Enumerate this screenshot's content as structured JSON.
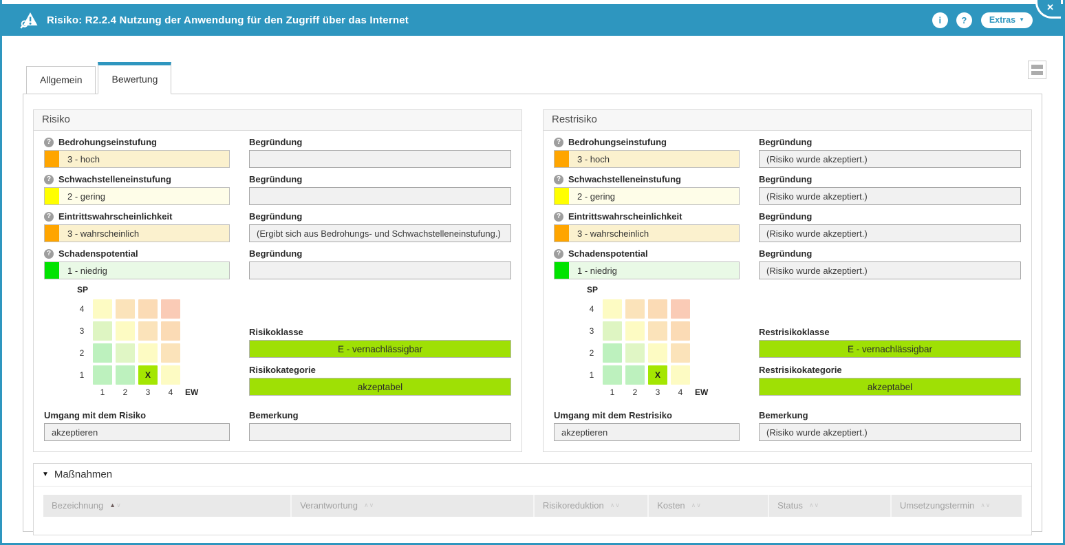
{
  "titlebar": {
    "title": "Risiko: R2.2.4 Nutzung der Anwendung für den Zugriff über das Internet",
    "info_button": "i",
    "help_button": "?",
    "extras_button": "Extras",
    "close_button": "✕"
  },
  "colors": {
    "header_blue": "#2E96BF",
    "class_green": "#9FE005"
  },
  "tabs": {
    "allgemein": "Allgemein",
    "bewertung": "Bewertung"
  },
  "field_styles": [
    {
      "stripe": "#FFA500",
      "bg": "#FBF1CE"
    },
    {
      "stripe": "#FFFF00",
      "bg": "#FEFDE8"
    },
    {
      "stripe": "#FFA500",
      "bg": "#FBF1CE"
    },
    {
      "stripe": "#00E300",
      "bg": "#E9F9E6"
    }
  ],
  "risiko": {
    "title": "Risiko",
    "fields": [
      {
        "label": "Bedrohungseinstufung",
        "value": "3 - hoch",
        "reason_label": "Begründung",
        "reason": ""
      },
      {
        "label": "Schwachstelleneinstufung",
        "value": "2 - gering",
        "reason_label": "Begründung",
        "reason": ""
      },
      {
        "label": "Eintrittswahrscheinlichkeit",
        "value": "3 - wahrscheinlich",
        "reason_label": "Begründung",
        "reason": "(Ergibt sich aus Bedrohungs- und Schwachstelleneinstufung.)"
      },
      {
        "label": "Schadenspotential",
        "value": "1 - niedrig",
        "reason_label": "Begründung",
        "reason": ""
      }
    ],
    "class_label": "Risikoklasse",
    "class_value": "E - vernachlässigbar",
    "category_label": "Risikokategorie",
    "category_value": "akzeptabel",
    "handling_label": "Umgang mit dem Risiko",
    "handling_value": "akzeptieren",
    "remark_label": "Bemerkung",
    "remark": ""
  },
  "restrisiko": {
    "title": "Restrisiko",
    "fields": [
      {
        "label": "Bedrohungseinstufung",
        "value": "3 - hoch",
        "reason_label": "Begründung",
        "reason": "(Risiko wurde akzeptiert.)"
      },
      {
        "label": "Schwachstelleneinstufung",
        "value": "2 - gering",
        "reason_label": "Begründung",
        "reason": "(Risiko wurde akzeptiert.)"
      },
      {
        "label": "Eintrittswahrscheinlichkeit",
        "value": "3 - wahrscheinlich",
        "reason_label": "Begründung",
        "reason": "(Risiko wurde akzeptiert.)"
      },
      {
        "label": "Schadenspotential",
        "value": "1 - niedrig",
        "reason_label": "Begründung",
        "reason": "(Risiko wurde akzeptiert.)"
      }
    ],
    "class_label": "Restrisikoklasse",
    "class_value": "E - vernachlässigbar",
    "category_label": "Restrisikokategorie",
    "category_value": "akzeptabel",
    "handling_label": "Umgang mit dem Restrisiko",
    "handling_value": "akzeptieren",
    "remark_label": "Bemerkung",
    "remark": "(Risiko wurde akzeptiert.)"
  },
  "matrix": {
    "sp_label": "SP",
    "ew_label": "EW",
    "row_labels": [
      "4",
      "3",
      "2",
      "1"
    ],
    "col_labels": [
      "1",
      "2",
      "3",
      "4"
    ],
    "marker": "X",
    "marker_row_index": 3,
    "marker_col_index": 2,
    "cell_colors": [
      [
        "#FDFBC3",
        "#FBE3BA",
        "#FBDBB5",
        "#FACBB6"
      ],
      [
        "#DEF5C2",
        "#FDFBC3",
        "#FBE3BA",
        "#FBDBB5"
      ],
      [
        "#BDF1BE",
        "#E0F6C5",
        "#FDFBC3",
        "#FBE3BA"
      ],
      [
        "#BDF1BE",
        "#BDF1BE",
        "#A4E602",
        "#FDFBC3"
      ]
    ]
  },
  "massnahmen": {
    "title": "Maßnahmen",
    "columns": [
      {
        "label": "Bezeichnung",
        "sort": "asc"
      },
      {
        "label": "Verantwortung",
        "sort": "none"
      },
      {
        "label": "Risikoreduktion",
        "sort": "none"
      },
      {
        "label": "Kosten",
        "sort": "none"
      },
      {
        "label": "Status",
        "sort": "none"
      },
      {
        "label": "Umsetzungstermin",
        "sort": "none"
      }
    ]
  }
}
